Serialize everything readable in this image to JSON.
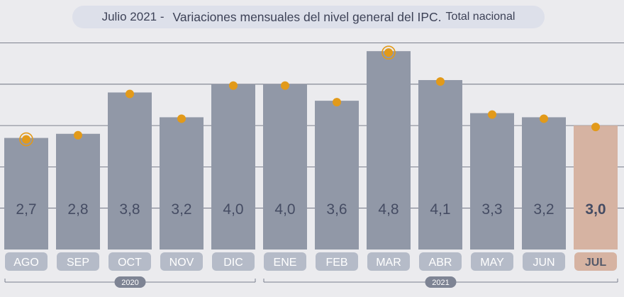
{
  "title": {
    "period": "Julio 2021 -",
    "main": "Variaciones mensuales del nivel general del IPC.",
    "scope": "Total nacional"
  },
  "colors": {
    "background": "#ebebee",
    "bar": "#9198a7",
    "bar_highlight": "#d6b3a2",
    "marker": "#e29a1a",
    "value_text": "#454c63",
    "label_pill": "#b5bbc8",
    "label_pill_highlight": "#d6b3a2",
    "grid": "#5b6070"
  },
  "chart_data": {
    "type": "bar",
    "title": "Julio 2021 - Variaciones mensuales del nivel general del IPC. Total nacional",
    "categories": [
      "AGO",
      "SEP",
      "OCT",
      "NOV",
      "DIC",
      "ENE",
      "FEB",
      "MAR",
      "ABR",
      "MAY",
      "JUN",
      "JUL"
    ],
    "values": [
      2.7,
      2.8,
      3.8,
      3.2,
      4.0,
      4.0,
      3.6,
      4.8,
      4.1,
      3.3,
      3.2,
      3.0
    ],
    "value_labels": [
      "2,7",
      "2,8",
      "3,8",
      "3,2",
      "4,0",
      "4,0",
      "3,6",
      "4,8",
      "4,1",
      "3,3",
      "3,2",
      "3,0"
    ],
    "highlight_index": 11,
    "ringed_markers": [
      0,
      7
    ],
    "ylim": [
      0,
      5.0
    ],
    "grid": true,
    "xlabel": "",
    "ylabel": "",
    "groups": [
      {
        "label": "2020",
        "start": 0,
        "end": 4
      },
      {
        "label": "2021",
        "start": 5,
        "end": 11
      }
    ]
  }
}
